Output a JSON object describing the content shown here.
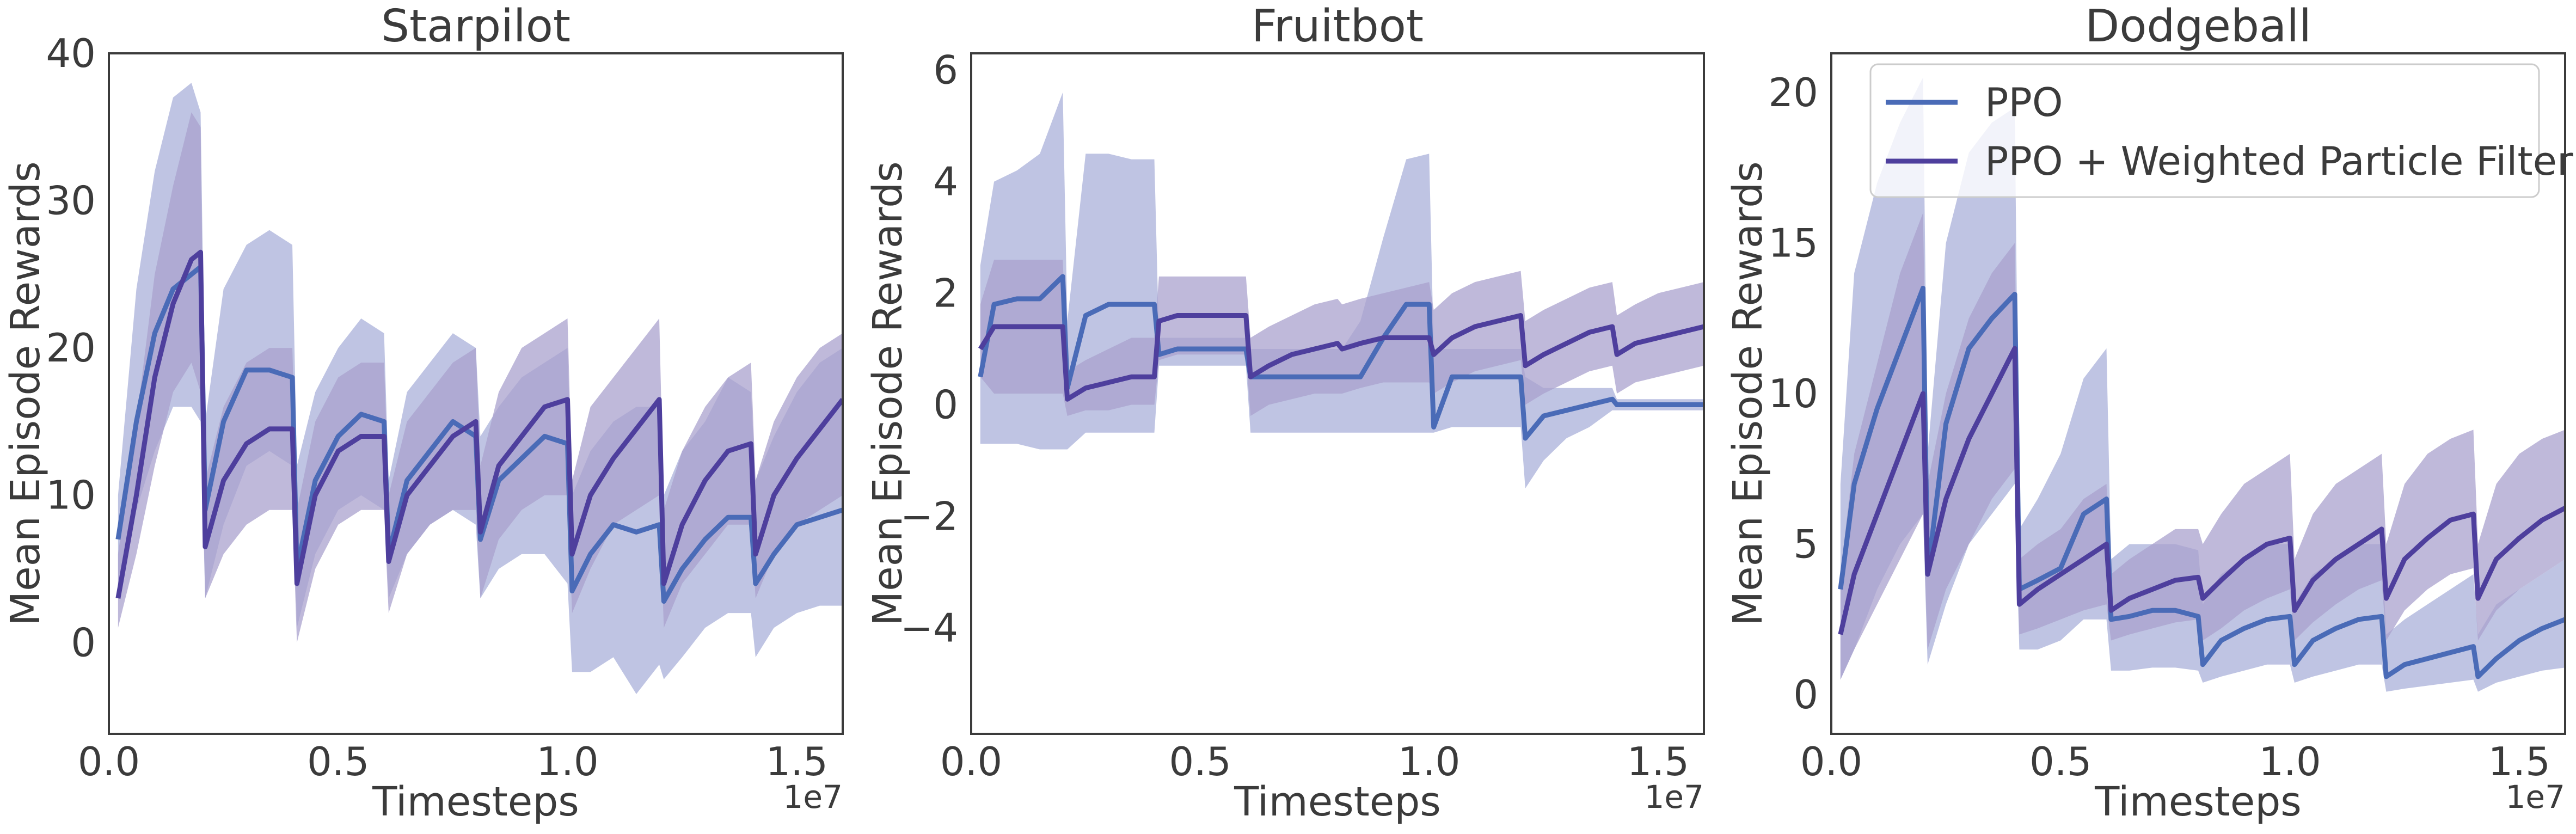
{
  "colors": {
    "ppo": "#4a6bb7",
    "wpf": "#4e3f9d",
    "ppo_band": "#b4bade",
    "wpf_band": "#a9a2cd",
    "axes": "#3b3b3b"
  },
  "chart_data": [
    {
      "type": "line",
      "title": "Starpilot",
      "xlabel": "Timesteps",
      "ylabel": "Mean Episode Rewards",
      "x_offset_label": "1e7",
      "xlim": [
        0,
        1.6
      ],
      "ylim": [
        -6.2,
        40
      ],
      "xticks": [
        0.0,
        0.5,
        1.0,
        1.5
      ],
      "xtick_labels": [
        "0.0",
        "0.5",
        "1.0",
        "1.5"
      ],
      "yticks": [
        0,
        10,
        20,
        30,
        40
      ],
      "ytick_labels": [
        "0",
        "10",
        "20",
        "30",
        "40"
      ],
      "grid": false,
      "series": [
        {
          "name": "PPO",
          "color": "ppo",
          "x": [
            0.02,
            0.06,
            0.1,
            0.14,
            0.18,
            0.2,
            0.21,
            0.25,
            0.3,
            0.35,
            0.4,
            0.41,
            0.45,
            0.5,
            0.55,
            0.6,
            0.61,
            0.65,
            0.7,
            0.75,
            0.8,
            0.81,
            0.85,
            0.9,
            0.95,
            1.0,
            1.01,
            1.05,
            1.1,
            1.15,
            1.2,
            1.21,
            1.25,
            1.3,
            1.35,
            1.4,
            1.41,
            1.45,
            1.5,
            1.55,
            1.6
          ],
          "y": [
            7,
            15,
            21,
            24,
            25,
            25.5,
            9,
            15,
            18.5,
            18.5,
            18,
            5,
            11,
            14,
            15.5,
            15,
            6,
            11,
            13,
            15,
            14,
            7,
            11,
            12.5,
            14,
            13.5,
            3.5,
            6,
            8,
            7.5,
            8,
            2.8,
            5,
            7,
            8.5,
            8.5,
            4,
            6,
            8,
            8.5,
            9
          ],
          "lower": [
            4,
            9,
            13,
            16,
            16,
            15,
            3,
            8,
            12,
            13,
            12,
            1,
            6,
            9,
            10,
            9,
            3,
            6,
            8,
            9,
            8,
            3,
            5,
            6,
            6,
            4,
            -2,
            -2,
            -1,
            -3.5,
            -1.5,
            -2.5,
            -1,
            1,
            2,
            2,
            -1,
            1,
            2,
            2.5,
            2.5
          ],
          "upper": [
            10,
            24,
            32,
            37,
            38,
            36,
            15,
            24,
            27,
            28,
            27,
            12,
            17,
            20,
            22,
            21,
            11,
            17,
            19,
            21,
            20,
            14,
            16,
            18,
            19,
            20,
            10,
            13,
            15,
            16,
            16,
            10,
            13,
            15,
            18,
            17,
            11,
            14,
            17,
            19,
            20
          ]
        },
        {
          "name": "PPO + Weighted Particle Filter",
          "color": "wpf",
          "x": [
            0.02,
            0.06,
            0.1,
            0.14,
            0.18,
            0.2,
            0.21,
            0.25,
            0.3,
            0.35,
            0.4,
            0.41,
            0.45,
            0.5,
            0.55,
            0.6,
            0.61,
            0.65,
            0.7,
            0.75,
            0.8,
            0.81,
            0.85,
            0.9,
            0.95,
            1.0,
            1.01,
            1.05,
            1.1,
            1.15,
            1.2,
            1.21,
            1.25,
            1.3,
            1.35,
            1.4,
            1.41,
            1.45,
            1.5,
            1.55,
            1.6
          ],
          "y": [
            3,
            10,
            18,
            23,
            26,
            26.5,
            6.5,
            11,
            13.5,
            14.5,
            14.5,
            4,
            10,
            13,
            14,
            14,
            5.5,
            10,
            12,
            14,
            15,
            7.5,
            12,
            14,
            16,
            16.5,
            6,
            10,
            12.5,
            14.5,
            16.5,
            4,
            8,
            11,
            13,
            13.5,
            6,
            10,
            12.5,
            14.5,
            16.5
          ],
          "lower": [
            1,
            6,
            12,
            17,
            19,
            17,
            3,
            6,
            8,
            9,
            9,
            0,
            5,
            8,
            9,
            9,
            2,
            6,
            8,
            9,
            9,
            3,
            7,
            9,
            10,
            10,
            2,
            5,
            8,
            9,
            10,
            1,
            4,
            6,
            8,
            8,
            3,
            6,
            8,
            9,
            10
          ],
          "upper": [
            6,
            15,
            25,
            31,
            36,
            35,
            11,
            16,
            19,
            20,
            20,
            9,
            15,
            18,
            19,
            19,
            10,
            15,
            17,
            19,
            20,
            12,
            17,
            20,
            21,
            22,
            11,
            16,
            18,
            20,
            22,
            9,
            13,
            16,
            18,
            19,
            11,
            15,
            18,
            20,
            21
          ]
        }
      ]
    },
    {
      "type": "line",
      "title": "Fruitbot",
      "xlabel": "Timesteps",
      "ylabel": "Mean Episode Rewards",
      "x_offset_label": "1e7",
      "xlim": [
        0,
        1.6
      ],
      "ylim": [
        -5.9,
        6.3
      ],
      "xticks": [
        0.0,
        0.5,
        1.0,
        1.5
      ],
      "xtick_labels": [
        "0.0",
        "0.5",
        "1.0",
        "1.5"
      ],
      "yticks": [
        -4,
        -2,
        0,
        2,
        4,
        6
      ],
      "ytick_labels": [
        "−4",
        "−2",
        "0",
        "2",
        "4",
        "6"
      ],
      "grid": false,
      "series": [
        {
          "name": "PPO",
          "color": "ppo",
          "x": [
            0.02,
            0.05,
            0.1,
            0.15,
            0.2,
            0.21,
            0.25,
            0.3,
            0.35,
            0.4,
            0.41,
            0.45,
            0.5,
            0.55,
            0.6,
            0.61,
            0.65,
            0.7,
            0.75,
            0.8,
            0.81,
            0.85,
            0.9,
            0.95,
            1.0,
            1.01,
            1.05,
            1.1,
            1.15,
            1.2,
            1.21,
            1.25,
            1.3,
            1.35,
            1.4,
            1.41,
            1.45,
            1.5,
            1.55,
            1.6
          ],
          "y": [
            0.5,
            1.8,
            1.9,
            1.9,
            2.3,
            0.3,
            1.6,
            1.8,
            1.8,
            1.8,
            0.9,
            1.0,
            1.0,
            1.0,
            1.0,
            0.5,
            0.5,
            0.5,
            0.5,
            0.5,
            0.5,
            0.5,
            1.2,
            1.8,
            1.8,
            -0.4,
            0.5,
            0.5,
            0.5,
            0.5,
            -0.6,
            -0.2,
            -0.1,
            0.0,
            0.1,
            0.0,
            0.0,
            0.0,
            0.0,
            0.0
          ],
          "lower": [
            -0.7,
            -0.7,
            -0.7,
            -0.8,
            -0.8,
            -0.8,
            -0.5,
            -0.5,
            -0.5,
            -0.5,
            0.7,
            0.7,
            0.7,
            0.7,
            0.7,
            -0.5,
            -0.5,
            -0.5,
            -0.5,
            -0.5,
            -0.5,
            -0.5,
            -0.5,
            -0.5,
            -0.5,
            -0.5,
            -0.4,
            -0.4,
            -0.4,
            -0.4,
            -1.5,
            -1.0,
            -0.6,
            -0.4,
            -0.1,
            -0.1,
            -0.1,
            -0.1,
            -0.1,
            -0.1
          ],
          "upper": [
            2.5,
            4.0,
            4.2,
            4.5,
            5.6,
            1.5,
            4.5,
            4.5,
            4.4,
            4.4,
            1.2,
            1.2,
            1.2,
            1.2,
            1.2,
            1.0,
            1.0,
            1.0,
            1.0,
            1.0,
            1.0,
            1.5,
            3.0,
            4.4,
            4.5,
            1.0,
            1.0,
            1.0,
            1.0,
            1.0,
            0.5,
            0.3,
            0.3,
            0.3,
            0.3,
            0.1,
            0.1,
            0.1,
            0.1,
            0.1
          ]
        },
        {
          "name": "PPO + Weighted Particle Filter",
          "color": "wpf",
          "x": [
            0.02,
            0.05,
            0.1,
            0.15,
            0.2,
            0.21,
            0.25,
            0.3,
            0.35,
            0.4,
            0.41,
            0.45,
            0.5,
            0.55,
            0.6,
            0.61,
            0.65,
            0.7,
            0.75,
            0.8,
            0.81,
            0.85,
            0.9,
            0.95,
            1.0,
            1.01,
            1.05,
            1.1,
            1.15,
            1.2,
            1.21,
            1.25,
            1.3,
            1.35,
            1.4,
            1.41,
            1.45,
            1.5,
            1.55,
            1.6
          ],
          "y": [
            1.0,
            1.4,
            1.4,
            1.4,
            1.4,
            0.1,
            0.3,
            0.4,
            0.5,
            0.5,
            1.5,
            1.6,
            1.6,
            1.6,
            1.6,
            0.5,
            0.7,
            0.9,
            1.0,
            1.1,
            1.0,
            1.1,
            1.2,
            1.2,
            1.2,
            0.9,
            1.2,
            1.4,
            1.5,
            1.6,
            0.7,
            0.9,
            1.1,
            1.3,
            1.4,
            0.9,
            1.1,
            1.2,
            1.3,
            1.4
          ],
          "lower": [
            0.5,
            0.2,
            0.2,
            0.2,
            0.2,
            -0.2,
            -0.1,
            -0.1,
            0.0,
            0.0,
            0.8,
            0.9,
            0.9,
            0.9,
            0.9,
            -0.2,
            0.0,
            0.1,
            0.2,
            0.2,
            0.2,
            0.3,
            0.4,
            0.4,
            0.4,
            0.2,
            0.4,
            0.6,
            0.7,
            0.8,
            0.0,
            0.2,
            0.4,
            0.6,
            0.7,
            0.2,
            0.4,
            0.5,
            0.6,
            0.7
          ],
          "upper": [
            1.8,
            2.6,
            2.6,
            2.6,
            2.6,
            0.6,
            0.8,
            1.0,
            1.2,
            1.2,
            2.3,
            2.3,
            2.3,
            2.3,
            2.3,
            1.2,
            1.4,
            1.6,
            1.8,
            1.9,
            1.8,
            1.9,
            2.0,
            2.1,
            2.2,
            1.7,
            2.0,
            2.2,
            2.3,
            2.4,
            1.5,
            1.7,
            1.9,
            2.1,
            2.2,
            1.6,
            1.8,
            2.0,
            2.1,
            2.2
          ]
        }
      ]
    },
    {
      "type": "line",
      "title": "Dodgeball",
      "xlabel": "Timesteps",
      "ylabel": "Mean Episode Rewards",
      "x_offset_label": "1e7",
      "xlim": [
        0,
        1.6
      ],
      "ylim": [
        -1.3,
        21.3
      ],
      "xticks": [
        0.0,
        0.5,
        1.0,
        1.5
      ],
      "xtick_labels": [
        "0.0",
        "0.5",
        "1.0",
        "1.5"
      ],
      "yticks": [
        0,
        5,
        10,
        15,
        20
      ],
      "ytick_labels": [
        "0",
        "5",
        "10",
        "15",
        "20"
      ],
      "grid": false,
      "legend": {
        "position": "upper-right",
        "entries": [
          "PPO",
          "PPO + Weighted Particle Filter"
        ]
      },
      "series": [
        {
          "name": "PPO",
          "color": "ppo",
          "x": [
            0.02,
            0.05,
            0.1,
            0.15,
            0.2,
            0.21,
            0.25,
            0.3,
            0.35,
            0.4,
            0.41,
            0.45,
            0.5,
            0.55,
            0.6,
            0.61,
            0.65,
            0.7,
            0.75,
            0.8,
            0.81,
            0.85,
            0.9,
            0.95,
            1.0,
            1.01,
            1.05,
            1.1,
            1.15,
            1.2,
            1.21,
            1.25,
            1.3,
            1.35,
            1.4,
            1.41,
            1.45,
            1.5,
            1.55,
            1.6
          ],
          "y": [
            3.5,
            7,
            9.5,
            11.5,
            13.5,
            4,
            9,
            11.5,
            12.5,
            13.3,
            3.5,
            3.8,
            4.2,
            6,
            6.5,
            2.5,
            2.6,
            2.8,
            2.8,
            2.6,
            1.0,
            1.8,
            2.2,
            2.5,
            2.6,
            1.0,
            1.8,
            2.2,
            2.5,
            2.6,
            0.6,
            1.0,
            1.2,
            1.4,
            1.6,
            0.6,
            1.2,
            1.8,
            2.2,
            2.5
          ],
          "lower": [
            0.5,
            1.5,
            3.5,
            5,
            6,
            1,
            3,
            5,
            6,
            7,
            1.5,
            1.5,
            1.8,
            2.5,
            2.5,
            0.8,
            0.8,
            0.9,
            0.9,
            0.8,
            0.4,
            0.6,
            0.8,
            1.0,
            1.0,
            0.4,
            0.6,
            0.8,
            1.0,
            1.0,
            0.1,
            0.2,
            0.3,
            0.4,
            0.5,
            0.1,
            0.4,
            0.6,
            0.8,
            0.9
          ],
          "upper": [
            7,
            14,
            17,
            19,
            20.5,
            8,
            15,
            18,
            19,
            19.5,
            5.5,
            6.5,
            8,
            10.5,
            11.5,
            4.5,
            5,
            5,
            5,
            4.8,
            3,
            4,
            4.5,
            5,
            5,
            3,
            4,
            4.5,
            5,
            5,
            2,
            2.5,
            3,
            3.5,
            4,
            2,
            3,
            3.5,
            4,
            4.5
          ]
        },
        {
          "name": "PPO + Weighted Particle Filter",
          "color": "wpf",
          "x": [
            0.02,
            0.05,
            0.1,
            0.15,
            0.2,
            0.21,
            0.25,
            0.3,
            0.35,
            0.4,
            0.41,
            0.45,
            0.5,
            0.55,
            0.6,
            0.61,
            0.65,
            0.7,
            0.75,
            0.8,
            0.81,
            0.85,
            0.9,
            0.95,
            1.0,
            1.01,
            1.05,
            1.1,
            1.15,
            1.2,
            1.21,
            1.25,
            1.3,
            1.35,
            1.4,
            1.41,
            1.45,
            1.5,
            1.55,
            1.6
          ],
          "y": [
            2,
            4,
            6,
            8,
            10,
            4,
            6.5,
            8.5,
            10,
            11.5,
            3,
            3.5,
            4,
            4.5,
            5,
            2.8,
            3.2,
            3.5,
            3.8,
            3.9,
            3.2,
            3.8,
            4.5,
            5,
            5.2,
            2.8,
            3.8,
            4.5,
            5,
            5.5,
            3.2,
            4.5,
            5.2,
            5.8,
            6,
            3.2,
            4.5,
            5.2,
            5.8,
            6.2
          ],
          "lower": [
            0.5,
            1.5,
            3,
            4.5,
            6,
            1.5,
            3.5,
            5,
            6.5,
            7.5,
            2,
            2.2,
            2.5,
            2.8,
            3,
            1.8,
            2,
            2.2,
            2.4,
            2.5,
            1.8,
            2.2,
            2.8,
            3.2,
            3.5,
            1.8,
            2.4,
            3,
            3.5,
            3.8,
            1.8,
            2.8,
            3.5,
            4,
            4.2,
            1.8,
            2.8,
            3.5,
            4,
            4.5
          ],
          "upper": [
            4,
            8,
            11,
            14,
            16,
            7,
            10,
            12.5,
            14,
            15,
            4.5,
            5,
            5.5,
            6.5,
            7,
            4,
            4.5,
            5,
            5.5,
            5.5,
            5,
            6,
            7,
            7.5,
            8,
            4.5,
            6,
            7,
            7.5,
            8,
            5,
            7,
            8,
            8.5,
            8.8,
            5,
            7,
            8,
            8.5,
            8.8
          ]
        }
      ]
    }
  ]
}
